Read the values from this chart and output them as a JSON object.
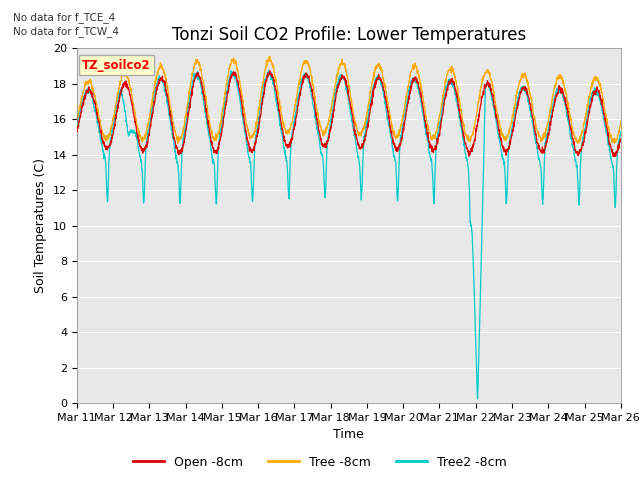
{
  "title": "Tonzi Soil CO2 Profile: Lower Temperatures",
  "xlabel": "Time",
  "ylabel": "Soil Temperatures (C)",
  "ylim": [
    0,
    20
  ],
  "annotation1": "No data for f_TCE_4",
  "annotation2": "No data for f_TCW_4",
  "box_label": "TZ_soilco2",
  "legend_labels": [
    "Open -8cm",
    "Tree -8cm",
    "Tree2 -8cm"
  ],
  "line_colors": [
    "#dd0000",
    "#ffaa00",
    "#00cccc"
  ],
  "bg_color": "#e8e8e8",
  "title_fontsize": 12,
  "tick_label_fontsize": 8,
  "x_tick_labels": [
    "Mar 11",
    "Mar 12",
    "Mar 13",
    "Mar 14",
    "Mar 15",
    "Mar 16",
    "Mar 17",
    "Mar 18",
    "Mar 19",
    "Mar 20",
    "Mar 21",
    "Mar 22",
    "Mar 23",
    "Mar 24",
    "Mar 25",
    "Mar 26"
  ]
}
